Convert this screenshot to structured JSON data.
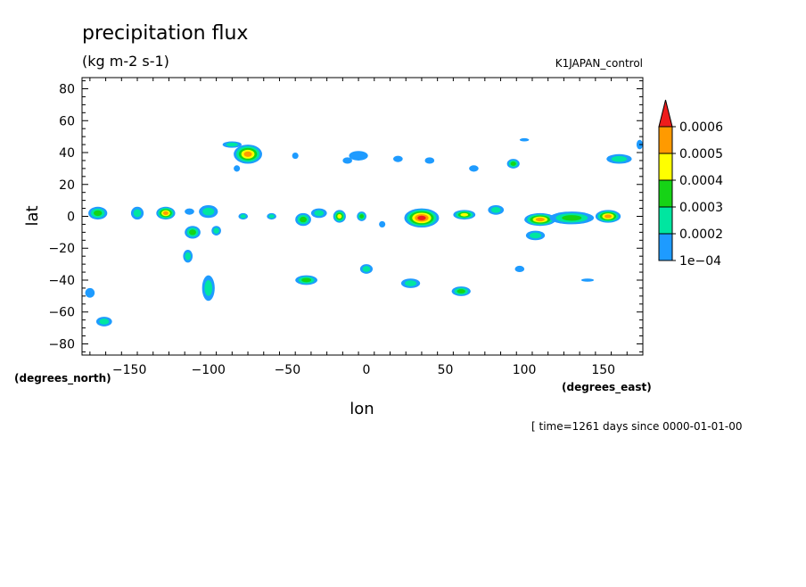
{
  "chart_data": {
    "type": "heatmap",
    "title": "precipitation flux",
    "units": "(kg m-2 s-1)",
    "dataset": "K1JAPAN_control",
    "xlabel": "lon",
    "ylabel": "lat",
    "x_units_label": "(degrees_east)",
    "y_units_label": "(degrees_north)",
    "time_label": "[ time=1261 days since 0000-01-01-00",
    "xlim": [
      -180,
      175
    ],
    "ylim": [
      -87,
      87
    ],
    "xticks": [
      -150,
      -100,
      -50,
      0,
      50,
      100,
      150
    ],
    "xtick_labels": [
      "−150",
      "−100",
      "−50",
      "0",
      "50",
      "100",
      "150"
    ],
    "yticks": [
      80,
      60,
      40,
      20,
      0,
      -20,
      -40,
      -60,
      -80
    ],
    "ytick_labels": [
      "80",
      "60",
      "40",
      "20",
      "0",
      "−20",
      "−40",
      "−60",
      "−80"
    ],
    "colorbar": {
      "levels": [
        0.0001,
        0.0002,
        0.0003,
        0.0004,
        0.0005,
        0.0006
      ],
      "labels": [
        "1e−04",
        "0.0002",
        "0.0003",
        "0.0004",
        "0.0005",
        "0.0006"
      ],
      "colors": [
        "#1e9bff",
        "#00e6a0",
        "#16d316",
        "#ffff00",
        "#ff9a00",
        "#ee1c1c"
      ]
    },
    "features": [
      {
        "lon": -75,
        "lat": 39,
        "rx": 9,
        "ry": 6,
        "peak": 5
      },
      {
        "lon": -85,
        "lat": 45,
        "rx": 6,
        "ry": 2,
        "peak": 2
      },
      {
        "lon": -127,
        "lat": 2,
        "rx": 6,
        "ry": 4,
        "peak": 5
      },
      {
        "lon": -170,
        "lat": 2,
        "rx": 6,
        "ry": 4,
        "peak": 3
      },
      {
        "lon": -145,
        "lat": 2,
        "rx": 4,
        "ry": 4,
        "peak": 2
      },
      {
        "lon": -100,
        "lat": 3,
        "rx": 6,
        "ry": 4,
        "peak": 2
      },
      {
        "lon": -112,
        "lat": 3,
        "rx": 3,
        "ry": 2,
        "peak": 1
      },
      {
        "lon": -110,
        "lat": -10,
        "rx": 5,
        "ry": 4,
        "peak": 3
      },
      {
        "lon": -95,
        "lat": -9,
        "rx": 3,
        "ry": 3,
        "peak": 2
      },
      {
        "lon": -113,
        "lat": -25,
        "rx": 3,
        "ry": 4,
        "peak": 2
      },
      {
        "lon": -100,
        "lat": -45,
        "rx": 4,
        "ry": 8,
        "peak": 2
      },
      {
        "lon": -175,
        "lat": -48,
        "rx": 3,
        "ry": 3,
        "peak": 1
      },
      {
        "lon": -166,
        "lat": -66,
        "rx": 5,
        "ry": 3,
        "peak": 2
      },
      {
        "lon": -38,
        "lat": -40,
        "rx": 7,
        "ry": 3,
        "peak": 3
      },
      {
        "lon": -40,
        "lat": -2,
        "rx": 5,
        "ry": 4,
        "peak": 3
      },
      {
        "lon": -30,
        "lat": 2,
        "rx": 5,
        "ry": 3,
        "peak": 2
      },
      {
        "lon": -17,
        "lat": 0,
        "rx": 4,
        "ry": 4,
        "peak": 4
      },
      {
        "lon": -3,
        "lat": 0,
        "rx": 3,
        "ry": 3,
        "peak": 3
      },
      {
        "lon": -78,
        "lat": 0,
        "rx": 3,
        "ry": 2,
        "peak": 2
      },
      {
        "lon": -60,
        "lat": 0,
        "rx": 3,
        "ry": 2,
        "peak": 2
      },
      {
        "lon": 35,
        "lat": -1,
        "rx": 11,
        "ry": 6,
        "peak": 6
      },
      {
        "lon": 62,
        "lat": 1,
        "rx": 7,
        "ry": 3,
        "peak": 4
      },
      {
        "lon": 82,
        "lat": 4,
        "rx": 5,
        "ry": 3,
        "peak": 2
      },
      {
        "lon": 93,
        "lat": 33,
        "rx": 4,
        "ry": 3,
        "peak": 3
      },
      {
        "lon": 110,
        "lat": -2,
        "rx": 10,
        "ry": 4,
        "peak": 5
      },
      {
        "lon": 130,
        "lat": -1,
        "rx": 14,
        "ry": 4,
        "peak": 3
      },
      {
        "lon": 153,
        "lat": 0,
        "rx": 8,
        "ry": 4,
        "peak": 5
      },
      {
        "lon": 107,
        "lat": -12,
        "rx": 6,
        "ry": 3,
        "peak": 2
      },
      {
        "lon": 60,
        "lat": -47,
        "rx": 6,
        "ry": 3,
        "peak": 3
      },
      {
        "lon": 28,
        "lat": -42,
        "rx": 6,
        "ry": 3,
        "peak": 2
      },
      {
        "lon": 0,
        "lat": -33,
        "rx": 4,
        "ry": 3,
        "peak": 2
      },
      {
        "lon": -5,
        "lat": 38,
        "rx": 6,
        "ry": 3,
        "peak": 1
      },
      {
        "lon": -12,
        "lat": 35,
        "rx": 3,
        "ry": 2,
        "peak": 1
      },
      {
        "lon": 160,
        "lat": 36,
        "rx": 8,
        "ry": 3,
        "peak": 2
      },
      {
        "lon": 173,
        "lat": 45,
        "rx": 2,
        "ry": 3,
        "peak": 1
      },
      {
        "lon": 68,
        "lat": 30,
        "rx": 3,
        "ry": 2,
        "peak": 1
      },
      {
        "lon": 40,
        "lat": 35,
        "rx": 3,
        "ry": 2,
        "peak": 1
      },
      {
        "lon": 20,
        "lat": 36,
        "rx": 3,
        "ry": 2,
        "peak": 1
      },
      {
        "lon": 100,
        "lat": 48,
        "rx": 3,
        "ry": 1,
        "peak": 1
      },
      {
        "lon": 140,
        "lat": -40,
        "rx": 4,
        "ry": 1,
        "peak": 1
      },
      {
        "lon": 97,
        "lat": -33,
        "rx": 3,
        "ry": 2,
        "peak": 1
      },
      {
        "lon": 10,
        "lat": -5,
        "rx": 2,
        "ry": 2,
        "peak": 1
      },
      {
        "lon": -45,
        "lat": 38,
        "rx": 2,
        "ry": 2,
        "peak": 1
      },
      {
        "lon": -82,
        "lat": 30,
        "rx": 2,
        "ry": 2,
        "peak": 1
      }
    ]
  }
}
